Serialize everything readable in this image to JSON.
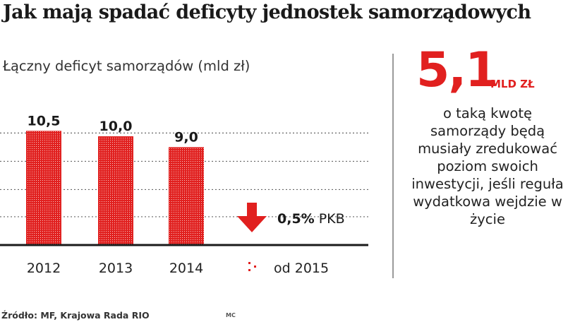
{
  "header": {
    "title": "Jak mają spadać deficyty jednostek samorządowych"
  },
  "chart_data": {
    "type": "bar",
    "ylabel": "Łączny deficyt samorządów (mld zł)",
    "categories": [
      "2012",
      "2013",
      "2014"
    ],
    "values": [
      10.5,
      10.0,
      9.0
    ],
    "value_labels": [
      "10,5",
      "10,0",
      "9,0"
    ],
    "ylim": [
      0,
      14
    ],
    "grid": true,
    "extra_category": {
      "label": "od 2015",
      "indicator": "down-arrow-icon",
      "value_bold": "0,5%",
      "value_unit": "PKB"
    },
    "bar_color": "#e1201f",
    "source": "Źródło: MF, Krajowa Rada RIO"
  },
  "callout": {
    "number": "5,1",
    "unit": "MLD ZŁ",
    "text": "o taką kwotę samorządy będą musiały zredukować poziom swoich inwestycji, jeśli reguła wydatkowa wejdzie w życie",
    "color": "#e1201f"
  },
  "footer": {
    "author": "MC"
  }
}
